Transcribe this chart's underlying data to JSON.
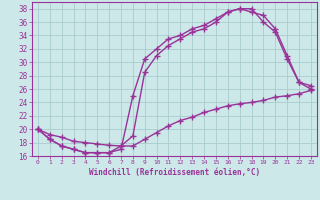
{
  "xlabel": "Windchill (Refroidissement éolien,°C)",
  "bg_color": "#cce8e8",
  "grid_color": "#aacccc",
  "line_color": "#993399",
  "xlim": [
    -0.5,
    23.5
  ],
  "ylim": [
    16,
    39
  ],
  "yticks": [
    16,
    18,
    20,
    22,
    24,
    26,
    28,
    30,
    32,
    34,
    36,
    38
  ],
  "xticks": [
    0,
    1,
    2,
    3,
    4,
    5,
    6,
    7,
    8,
    9,
    10,
    11,
    12,
    13,
    14,
    15,
    16,
    17,
    18,
    19,
    20,
    21,
    22,
    23
  ],
  "line1_x": [
    0,
    1,
    2,
    3,
    4,
    5,
    6,
    7,
    8,
    9,
    10,
    11,
    12,
    13,
    14,
    15,
    16,
    17,
    18,
    19,
    20,
    21,
    22,
    23
  ],
  "line1_y": [
    20.0,
    19.2,
    18.8,
    18.2,
    18.0,
    17.8,
    17.6,
    17.5,
    17.5,
    18.5,
    19.5,
    20.5,
    21.3,
    21.8,
    22.5,
    23.0,
    23.5,
    23.8,
    24.0,
    24.3,
    24.8,
    25.0,
    25.3,
    25.8
  ],
  "line2_x": [
    0,
    1,
    2,
    3,
    4,
    5,
    6,
    7,
    8,
    9,
    10,
    11,
    12,
    13,
    14,
    15,
    16,
    17,
    18,
    19,
    20,
    21,
    22,
    23
  ],
  "line2_y": [
    20.0,
    18.5,
    17.5,
    17.0,
    16.5,
    16.5,
    16.5,
    17.0,
    25.0,
    30.5,
    32.0,
    33.5,
    34.0,
    35.0,
    35.5,
    36.5,
    37.5,
    38.0,
    37.5,
    37.0,
    35.0,
    31.0,
    27.0,
    26.0
  ],
  "line3_x": [
    0,
    1,
    2,
    3,
    4,
    5,
    6,
    7,
    8,
    9,
    10,
    11,
    12,
    13,
    14,
    15,
    16,
    17,
    18,
    19,
    20,
    21,
    22,
    23
  ],
  "line3_y": [
    20.0,
    18.5,
    17.5,
    17.0,
    16.5,
    16.5,
    16.5,
    17.5,
    19.0,
    28.5,
    31.0,
    32.5,
    33.5,
    34.5,
    35.0,
    36.0,
    37.5,
    38.0,
    38.0,
    36.0,
    34.5,
    30.5,
    27.0,
    26.5
  ]
}
